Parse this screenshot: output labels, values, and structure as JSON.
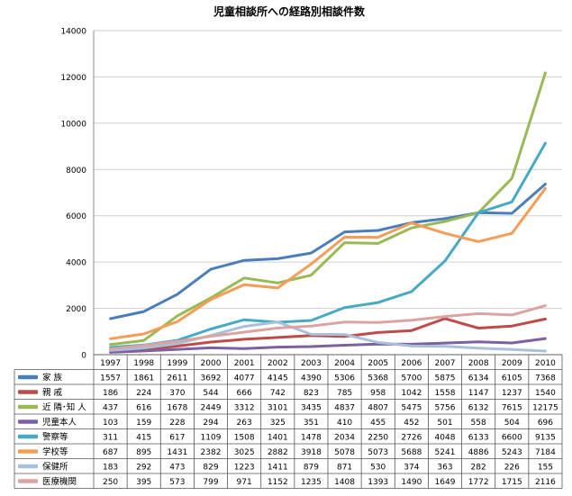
{
  "chart_data": {
    "type": "line",
    "title": "児童相談所への経路別相談件数",
    "xlabel": "",
    "ylabel": "",
    "ylim": [
      0,
      14000
    ],
    "yticks": [
      0,
      2000,
      4000,
      6000,
      8000,
      10000,
      12000,
      14000
    ],
    "grid": true,
    "legend": "data-table",
    "categories": [
      "1997",
      "1998",
      "1999",
      "2000",
      "2001",
      "2002",
      "2003",
      "2004",
      "2005",
      "2006",
      "2007",
      "2008",
      "2009",
      "2010"
    ],
    "series": [
      {
        "name": "家 族",
        "color": "#4a7ebb",
        "values": [
          1557,
          1861,
          2611,
          3692,
          4077,
          4145,
          4390,
          5306,
          5368,
          5700,
          5875,
          6134,
          6105,
          7368
        ]
      },
      {
        "name": "親 戚",
        "color": "#be4b48",
        "values": [
          186,
          224,
          370,
          544,
          666,
          742,
          823,
          785,
          958,
          1042,
          1558,
          1147,
          1237,
          1540
        ]
      },
      {
        "name": "近 隣･知 人",
        "color": "#98b954",
        "values": [
          437,
          616,
          1678,
          2449,
          3312,
          3101,
          3435,
          4837,
          4807,
          5475,
          5756,
          6132,
          7615,
          12175
        ]
      },
      {
        "name": "児童本人",
        "color": "#7d60a0",
        "values": [
          103,
          159,
          228,
          294,
          263,
          325,
          351,
          410,
          455,
          452,
          501,
          558,
          504,
          696
        ]
      },
      {
        "name": "警察等",
        "color": "#46aac5",
        "values": [
          311,
          415,
          617,
          1109,
          1508,
          1401,
          1478,
          2034,
          2250,
          2726,
          4048,
          6133,
          6600,
          9135
        ]
      },
      {
        "name": "学校等",
        "color": "#f59d56",
        "values": [
          687,
          895,
          1431,
          2382,
          3025,
          2882,
          3918,
          5078,
          5073,
          5688,
          5241,
          4886,
          5243,
          7184
        ]
      },
      {
        "name": "保健所",
        "color": "#a7c0de",
        "values": [
          183,
          292,
          473,
          829,
          1223,
          1411,
          879,
          871,
          530,
          374,
          363,
          282,
          226,
          155
        ]
      },
      {
        "name": "医療機関",
        "color": "#dba3a2",
        "values": [
          250,
          395,
          573,
          799,
          971,
          1152,
          1235,
          1408,
          1393,
          1490,
          1649,
          1772,
          1715,
          2116
        ]
      }
    ]
  }
}
